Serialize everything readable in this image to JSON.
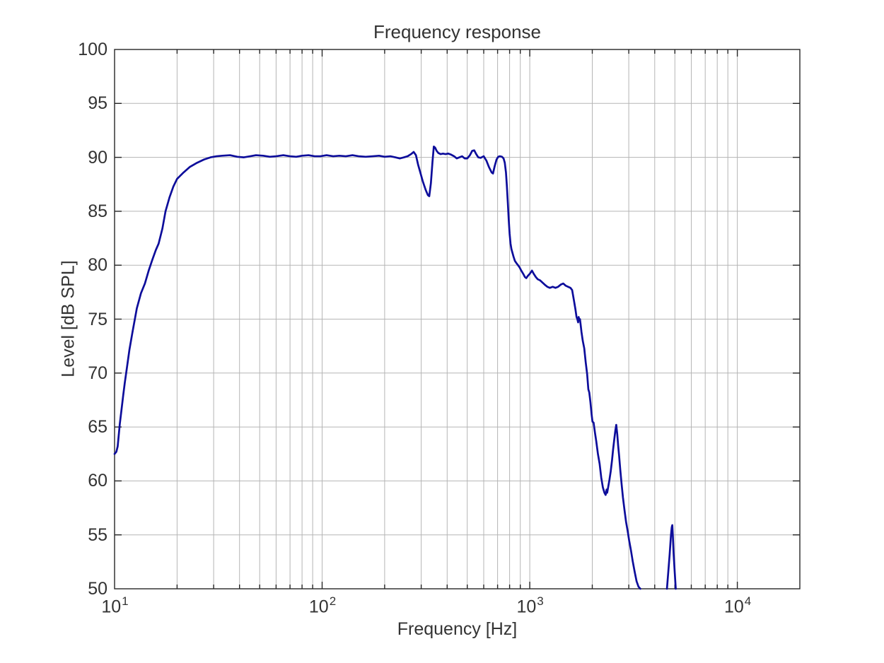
{
  "figure": {
    "title": "Frequency response",
    "xlabel": "Frequency [Hz]",
    "ylabel": "Level [dB SPL]",
    "background": "#ffffff"
  },
  "chart_data": {
    "type": "line",
    "title": "Frequency response",
    "xlabel": "Frequency [Hz]",
    "ylabel": "Level [dB SPL]",
    "x_scale": "log",
    "xlim": [
      10,
      20000
    ],
    "ylim": [
      50,
      100
    ],
    "y_ticks": [
      50,
      55,
      60,
      65,
      70,
      75,
      80,
      85,
      90,
      95,
      100
    ],
    "x_decades": [
      10,
      100,
      1000,
      10000
    ],
    "x_tick_labels": [
      {
        "value": 10,
        "base": "10",
        "exp": "1"
      },
      {
        "value": 100,
        "base": "10",
        "exp": "2"
      },
      {
        "value": 1000,
        "base": "10",
        "exp": "3"
      },
      {
        "value": 10000,
        "base": "10",
        "exp": "4"
      }
    ],
    "grid": true,
    "legend": "none",
    "colors": {
      "line": "#0d0d9b",
      "grid": "#b5b5b5",
      "axis": "#262626",
      "text": "#333333",
      "background": "#ffffff"
    },
    "line_width": 2.7,
    "series": [
      {
        "name": "Frequency response",
        "segments": [
          [
            [
              10,
              62.5
            ],
            [
              10.2,
              62.7
            ],
            [
              10.35,
              63.2
            ],
            [
              10.6,
              65.3
            ],
            [
              10.8,
              66.6
            ],
            [
              11,
              67.9
            ],
            [
              11.2,
              69.1
            ],
            [
              11.45,
              70.4
            ],
            [
              11.8,
              72.2
            ],
            [
              12.2,
              73.8
            ],
            [
              12.8,
              76
            ],
            [
              13.4,
              77.4
            ],
            [
              14,
              78.3
            ],
            [
              14.6,
              79.5
            ],
            [
              15.2,
              80.5
            ],
            [
              15.8,
              81.4
            ],
            [
              16.3,
              82
            ],
            [
              17,
              83.4
            ],
            [
              17.6,
              85
            ],
            [
              18.4,
              86.3
            ],
            [
              19.2,
              87.3
            ],
            [
              20,
              88
            ],
            [
              21.5,
              88.6
            ],
            [
              23,
              89.1
            ],
            [
              25,
              89.5
            ],
            [
              27,
              89.8
            ],
            [
              29,
              90
            ],
            [
              31,
              90.1
            ],
            [
              33,
              90.15
            ],
            [
              36,
              90.2
            ],
            [
              39,
              90.05
            ],
            [
              42,
              90
            ],
            [
              45,
              90.1
            ],
            [
              48,
              90.2
            ],
            [
              52,
              90.15
            ],
            [
              56,
              90.05
            ],
            [
              60,
              90.1
            ],
            [
              65,
              90.2
            ],
            [
              70,
              90.1
            ],
            [
              75,
              90.05
            ],
            [
              80,
              90.15
            ],
            [
              86,
              90.2
            ],
            [
              92,
              90.1
            ],
            [
              98,
              90.1
            ],
            [
              105,
              90.2
            ],
            [
              113,
              90.1
            ],
            [
              121,
              90.15
            ],
            [
              130,
              90.1
            ],
            [
              140,
              90.2
            ],
            [
              150,
              90.1
            ],
            [
              162,
              90.05
            ],
            [
              175,
              90.1
            ],
            [
              188,
              90.15
            ],
            [
              200,
              90.05
            ],
            [
              213,
              90.1
            ],
            [
              225,
              90
            ],
            [
              237,
              89.9
            ],
            [
              248,
              90
            ],
            [
              258,
              90.1
            ],
            [
              268,
              90.3
            ],
            [
              276,
              90.5
            ],
            [
              283,
              90.2
            ],
            [
              290,
              89.3
            ],
            [
              297,
              88.6
            ],
            [
              305,
              87.8
            ],
            [
              315,
              87
            ],
            [
              323,
              86.5
            ],
            [
              328,
              86.4
            ],
            [
              334,
              87.6
            ],
            [
              340,
              89.6
            ],
            [
              345,
              91
            ],
            [
              350,
              90.9
            ],
            [
              356,
              90.6
            ],
            [
              363,
              90.4
            ],
            [
              372,
              90.3
            ],
            [
              382,
              90.35
            ],
            [
              393,
              90.3
            ],
            [
              405,
              90.35
            ],
            [
              418,
              90.25
            ],
            [
              432,
              90.1
            ],
            [
              445,
              89.9
            ],
            [
              458,
              90
            ],
            [
              472,
              90.1
            ],
            [
              486,
              89.9
            ],
            [
              500,
              89.9
            ],
            [
              515,
              90.2
            ],
            [
              528,
              90.6
            ],
            [
              540,
              90.65
            ],
            [
              552,
              90.3
            ],
            [
              565,
              90
            ],
            [
              580,
              89.95
            ],
            [
              600,
              90.1
            ],
            [
              618,
              89.7
            ],
            [
              636,
              89.1
            ],
            [
              655,
              88.6
            ],
            [
              665,
              88.5
            ],
            [
              678,
              89.2
            ],
            [
              692,
              89.8
            ],
            [
              705,
              90.05
            ],
            [
              718,
              90.1
            ],
            [
              735,
              90.05
            ],
            [
              748,
              89.9
            ],
            [
              758,
              89.5
            ],
            [
              768,
              88.6
            ],
            [
              776,
              87.3
            ],
            [
              784,
              85.8
            ],
            [
              792,
              84.2
            ],
            [
              800,
              82.9
            ],
            [
              808,
              82
            ],
            [
              816,
              81.5
            ],
            [
              824,
              81.2
            ],
            [
              835,
              80.8
            ],
            [
              848,
              80.4
            ],
            [
              862,
              80.2
            ],
            [
              878,
              80
            ],
            [
              893,
              79.8
            ],
            [
              910,
              79.5
            ],
            [
              930,
              79.2
            ],
            [
              948,
              78.9
            ],
            [
              962,
              78.8
            ],
            [
              978,
              79
            ],
            [
              1000,
              79.2
            ],
            [
              1025,
              79.5
            ],
            [
              1045,
              79.2
            ],
            [
              1070,
              78.9
            ],
            [
              1092,
              78.7
            ],
            [
              1120,
              78.6
            ],
            [
              1150,
              78.4
            ],
            [
              1180,
              78.2
            ],
            [
              1215,
              78
            ],
            [
              1250,
              77.9
            ],
            [
              1290,
              78
            ],
            [
              1330,
              77.9
            ],
            [
              1370,
              78
            ],
            [
              1410,
              78.2
            ],
            [
              1450,
              78.3
            ],
            [
              1490,
              78.1
            ],
            [
              1530,
              78
            ],
            [
              1570,
              77.9
            ],
            [
              1600,
              77.7
            ],
            [
              1630,
              76.8
            ],
            [
              1660,
              75.9
            ],
            [
              1680,
              75.2
            ],
            [
              1695,
              75
            ],
            [
              1710,
              74.7
            ],
            [
              1720,
              75.2
            ],
            [
              1732,
              74.9
            ],
            [
              1745,
              75
            ],
            [
              1758,
              74.5
            ],
            [
              1775,
              73.8
            ],
            [
              1800,
              73
            ],
            [
              1830,
              72.3
            ],
            [
              1860,
              71
            ],
            [
              1890,
              69.9
            ],
            [
              1915,
              68.5
            ],
            [
              1935,
              68.2
            ],
            [
              1960,
              67.3
            ],
            [
              1985,
              66.2
            ],
            [
              2005,
              65.5
            ],
            [
              2030,
              65.4
            ],
            [
              2060,
              64.5
            ],
            [
              2090,
              63.7
            ],
            [
              2130,
              62.5
            ],
            [
              2170,
              61.6
            ],
            [
              2210,
              60.3
            ],
            [
              2250,
              59.4
            ],
            [
              2290,
              58.9
            ],
            [
              2320,
              58.7
            ],
            [
              2345,
              59.2
            ],
            [
              2360,
              58.9
            ],
            [
              2390,
              59.5
            ],
            [
              2420,
              60.1
            ],
            [
              2455,
              60.9
            ],
            [
              2490,
              61.9
            ],
            [
              2520,
              62.9
            ],
            [
              2555,
              63.9
            ],
            [
              2585,
              64.7
            ],
            [
              2610,
              65.2
            ],
            [
              2640,
              64.3
            ],
            [
              2665,
              63.3
            ],
            [
              2695,
              62.3
            ],
            [
              2730,
              61
            ],
            [
              2770,
              59.7
            ],
            [
              2810,
              58.5
            ],
            [
              2860,
              57.3
            ],
            [
              2910,
              56.2
            ],
            [
              2960,
              55.4
            ],
            [
              3010,
              54.5
            ],
            [
              3070,
              53.6
            ],
            [
              3130,
              52.6
            ],
            [
              3200,
              51.6
            ],
            [
              3270,
              50.7
            ],
            [
              3340,
              50.2
            ],
            [
              3410,
              50
            ]
          ],
          [
            [
              4580,
              50
            ],
            [
              4650,
              51.6
            ],
            [
              4720,
              53.2
            ],
            [
              4790,
              55
            ],
            [
              4830,
              55.7
            ],
            [
              4860,
              55.9
            ],
            [
              4890,
              54.9
            ],
            [
              4930,
              53.3
            ],
            [
              4990,
              51.6
            ],
            [
              5050,
              50
            ]
          ]
        ]
      }
    ]
  }
}
